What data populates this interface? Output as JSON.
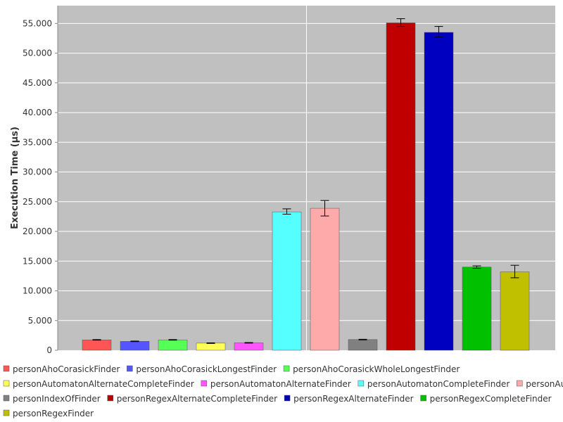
{
  "chart_data": {
    "type": "bar",
    "title": "",
    "xlabel": "",
    "ylabel": "Execution Time (µs)",
    "ylim": [
      0,
      58000
    ],
    "yticks": [
      0,
      5000,
      10000,
      15000,
      20000,
      25000,
      30000,
      35000,
      40000,
      45000,
      50000,
      55000
    ],
    "ytick_labels": [
      "0",
      "5.000",
      "10.000",
      "15.000",
      "20.000",
      "25.000",
      "30.000",
      "35.000",
      "40.000",
      "45.000",
      "50.000",
      "55.000"
    ],
    "grid": true,
    "legend_position": "bottom",
    "plot_background": "#c0c0c0",
    "series": [
      {
        "name": "personAhoCorasickFinder",
        "value": 1750,
        "err_low": 1700,
        "err_high": 1800,
        "color": "#ff5555"
      },
      {
        "name": "personAhoCorasickLongestFinder",
        "value": 1500,
        "err_low": 1450,
        "err_high": 1550,
        "color": "#5555ff"
      },
      {
        "name": "personAhoCorasickWholeLongestFinder",
        "value": 1750,
        "err_low": 1700,
        "err_high": 1800,
        "color": "#55ff55"
      },
      {
        "name": "personAutomatonAlternateCompleteFinder",
        "value": 1200,
        "err_low": 1150,
        "err_high": 1250,
        "color": "#ffff55"
      },
      {
        "name": "personAutomatonAlternateFinder",
        "value": 1250,
        "err_low": 1200,
        "err_high": 1300,
        "color": "#ff55ff"
      },
      {
        "name": "personAutomatonCompleteFinder",
        "value": 23300,
        "err_low": 22900,
        "err_high": 23800,
        "color": "#55ffff"
      },
      {
        "name": "personAutomatonFinder",
        "value": 23900,
        "err_low": 22600,
        "err_high": 25200,
        "color": "#ffaaaa"
      },
      {
        "name": "personIndexOfFinder",
        "value": 1800,
        "err_low": 1750,
        "err_high": 1850,
        "color": "#808080"
      },
      {
        "name": "personRegexAlternateCompleteFinder",
        "value": 55100,
        "err_low": 54500,
        "err_high": 55800,
        "color": "#c00000"
      },
      {
        "name": "personRegexAlternateFinder",
        "value": 53500,
        "err_low": 52700,
        "err_high": 54500,
        "color": "#0000c0"
      },
      {
        "name": "personRegexCompleteFinder",
        "value": 14000,
        "err_low": 13800,
        "err_high": 14200,
        "color": "#00c000"
      },
      {
        "name": "personRegexFinder",
        "value": 13200,
        "err_low": 12200,
        "err_high": 14300,
        "color": "#c0c000"
      }
    ]
  }
}
